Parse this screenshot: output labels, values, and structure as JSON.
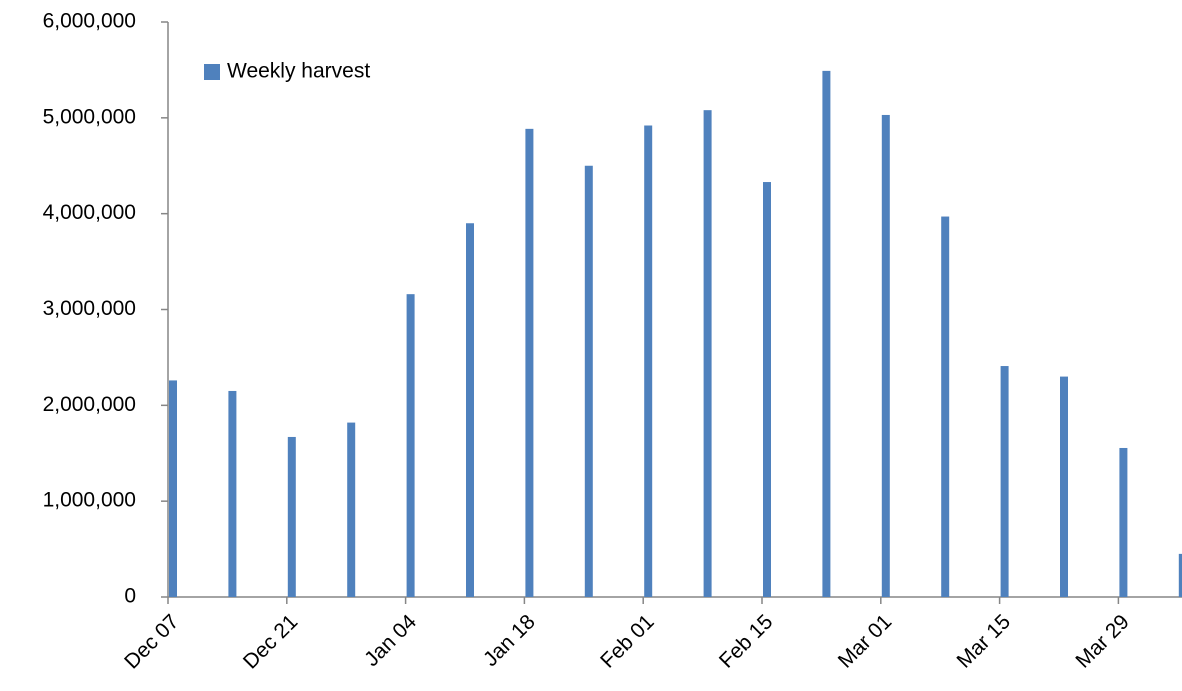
{
  "chart_data": {
    "type": "bar",
    "categories": [
      "Dec 07",
      null,
      "Dec 21",
      null,
      "Jan 04",
      null,
      "Jan 18",
      null,
      "Feb 01",
      null,
      "Feb 15",
      null,
      "Mar 01",
      null,
      "Mar 15",
      null,
      "Mar 29",
      null
    ],
    "series": [
      {
        "name": "Weekly harvest",
        "color": "#4f81bd",
        "values": [
          2260000,
          2150000,
          1670000,
          1820000,
          3160000,
          3900000,
          4885000,
          4500000,
          4920000,
          5080000,
          4330000,
          5490000,
          5030000,
          3970000,
          2410000,
          2300000,
          1555000,
          450000
        ]
      }
    ],
    "ylim": [
      0,
      6000000
    ],
    "yticks": [
      0,
      {
        "value": 1000000,
        "label": "1,000,000"
      },
      {
        "value": 2000000,
        "label": "2,000,000"
      },
      {
        "value": 3000000,
        "label": "3,000,000"
      },
      {
        "value": 4000000,
        "label": "4,000,000"
      },
      {
        "value": 5000000,
        "label": "5,000,000"
      },
      {
        "value": 6000000,
        "label": "6,000,000"
      }
    ],
    "grid": false,
    "legend": "top-left"
  }
}
